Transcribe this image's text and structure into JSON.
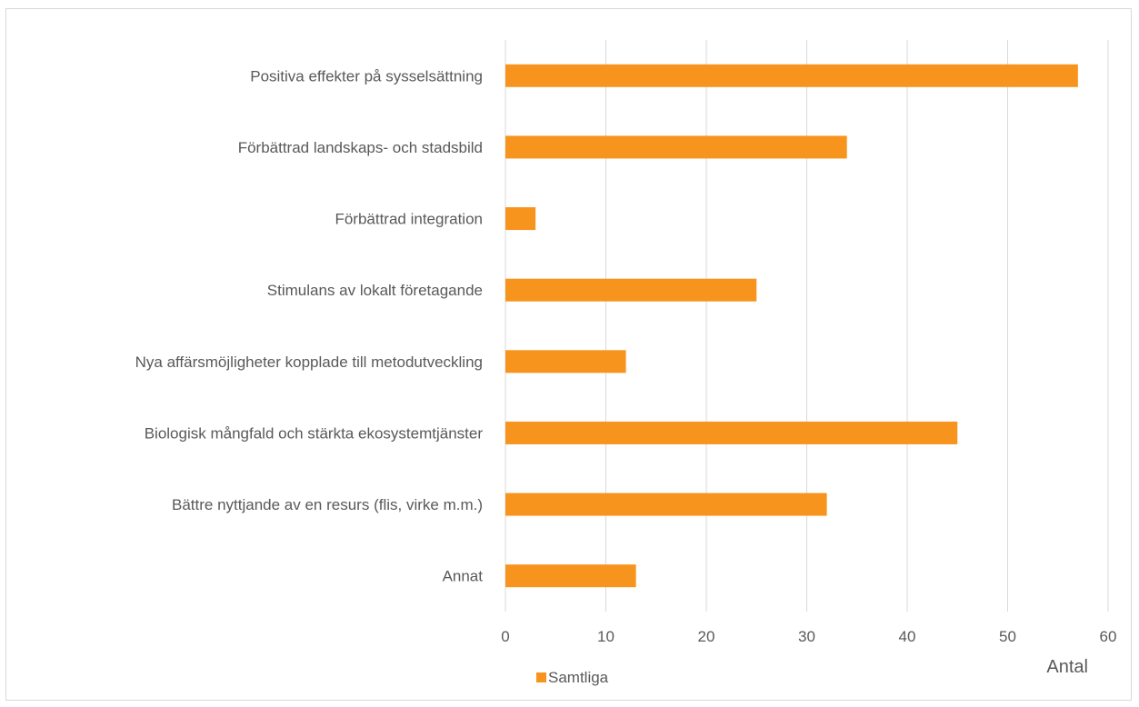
{
  "chart_data": {
    "type": "bar",
    "orientation": "horizontal",
    "categories": [
      "Positiva effekter på sysselsättning",
      "Förbättrad landskaps- och stadsbild",
      "Förbättrad integration",
      "Stimulans av lokalt företagande",
      "Nya affärsmöjligheter kopplade till metodutveckling",
      "Biologisk mångfald och stärkta ekosystemtjänster",
      "Bättre nyttjande av en resurs (flis, virke m.m.)",
      "Annat"
    ],
    "series": [
      {
        "name": "Samtliga",
        "values": [
          57,
          34,
          3,
          25,
          12,
          45,
          32,
          13
        ],
        "color": "#f7941d"
      }
    ],
    "xlabel": "Antal",
    "xlim": [
      0,
      60
    ],
    "xticks": [
      0,
      10,
      20,
      30,
      40,
      50,
      60
    ],
    "grid": "vertical",
    "gridColor": "#d9d9d9",
    "legend": "bottom-left"
  }
}
